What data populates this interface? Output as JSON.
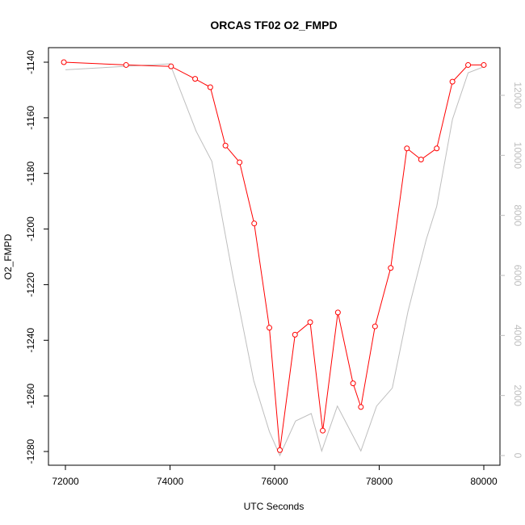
{
  "chart_data": {
    "type": "line",
    "title": "ORCAS TF02 O2_FMPD",
    "xlabel": "UTC Seconds",
    "ylabel": "O2_FMPD",
    "xlim": [
      72000,
      80000
    ],
    "ylim": [
      -1280,
      -1140
    ],
    "y2lim": [
      0,
      12000
    ],
    "x_ticks": [
      "72000",
      "74000",
      "76000",
      "78000",
      "80000"
    ],
    "y_ticks": [
      "-1280",
      "-1260",
      "-1240",
      "-1220",
      "-1200",
      "-1180",
      "-1160",
      "-1140"
    ],
    "y2_ticks": [
      "0",
      "2000",
      "4000",
      "6000",
      "8000",
      "10000",
      "12000"
    ],
    "grid": false,
    "series": [
      {
        "axis": "left",
        "color": "#ff0000",
        "style": "line-with-open-circles",
        "x": [
          71970,
          73160,
          74020,
          74480,
          74770,
          75060,
          75330,
          75610,
          75900,
          76100,
          76390,
          76680,
          76920,
          77210,
          77500,
          77650,
          77920,
          78220,
          78530,
          78800,
          79100,
          79400,
          79700,
          80000
        ],
        "y": [
          -1140,
          -1141,
          -1141.5,
          -1146,
          -1149,
          -1170,
          -1176,
          -1198,
          -1235.5,
          -1279.5,
          -1238,
          -1233.5,
          -1272.5,
          -1230,
          -1255.5,
          -1264,
          -1235,
          -1214,
          -1171,
          -1175,
          -1171,
          -1147,
          -1141,
          -1141
        ]
      },
      {
        "axis": "right",
        "color": "#bebebe",
        "style": "line",
        "x": [
          72000,
          74000,
          74500,
          74800,
          75200,
          75600,
          75900,
          76100,
          76400,
          76700,
          76900,
          77200,
          77650,
          77950,
          78250,
          78550,
          78900,
          79100,
          79400,
          79700,
          80000
        ],
        "y": [
          12850,
          13050,
          10800,
          9800,
          6000,
          2500,
          800,
          0,
          1150,
          1400,
          150,
          1650,
          150,
          1650,
          2250,
          4800,
          7200,
          8300,
          11200,
          12750,
          12950
        ]
      }
    ]
  }
}
